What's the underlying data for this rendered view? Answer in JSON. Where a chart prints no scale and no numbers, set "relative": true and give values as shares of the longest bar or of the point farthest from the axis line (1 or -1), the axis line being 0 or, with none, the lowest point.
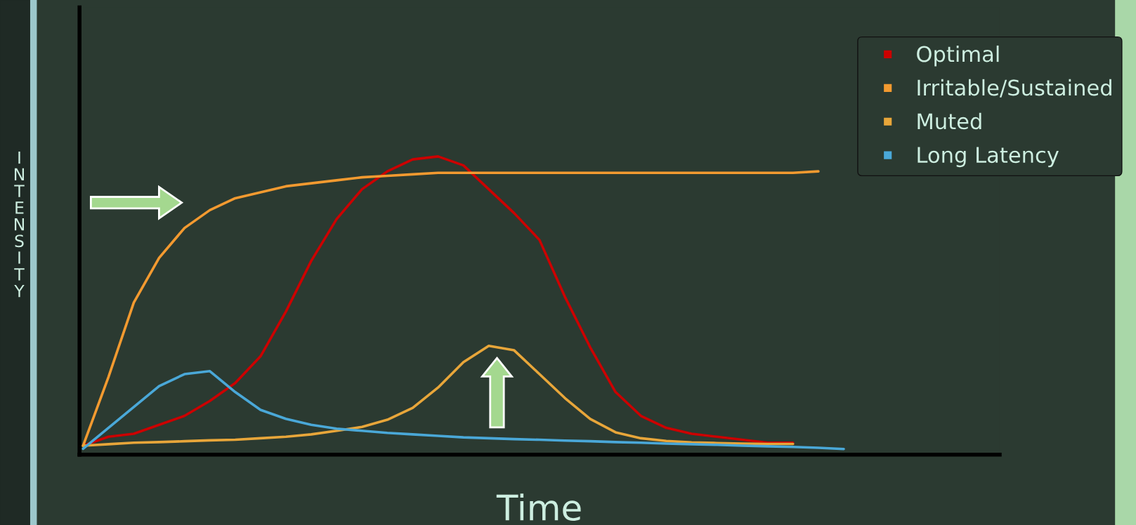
{
  "chart_data": {
    "type": "line",
    "relative": true,
    "xlabel": "Time",
    "ylabel": "INTENSITY",
    "legend": "top right",
    "marker": "none",
    "line_style": "solid",
    "categories": [
      null,
      null,
      null,
      null,
      null,
      null,
      null,
      null,
      null,
      null,
      null,
      null,
      null,
      null,
      null,
      null,
      null,
      null,
      null,
      null,
      null,
      null,
      null,
      null,
      null,
      null,
      null,
      null,
      null,
      null,
      null
    ],
    "series": [
      {
        "name": "Optimal",
        "color": "#cc0000",
        "values": [
          0.03,
          0.06,
          0.07,
          0.1,
          0.13,
          0.18,
          0.24,
          0.33,
          0.48,
          0.65,
          0.79,
          0.89,
          0.95,
          0.99,
          1.0,
          0.97,
          0.89,
          0.81,
          0.72,
          0.53,
          0.36,
          0.21,
          0.13,
          0.09,
          0.07,
          0.06,
          0.05,
          0.04,
          0.04,
          null,
          null
        ]
      },
      {
        "name": "Irritable/Sustained",
        "color": "#f39a30",
        "values": [
          0.03,
          0.26,
          0.51,
          0.66,
          0.76,
          0.82,
          0.86,
          0.88,
          0.9,
          0.91,
          0.92,
          0.93,
          0.935,
          0.94,
          0.945,
          0.945,
          0.945,
          0.945,
          0.945,
          0.945,
          0.945,
          0.945,
          0.945,
          0.945,
          0.945,
          0.945,
          0.945,
          0.945,
          0.945,
          0.95,
          null
        ]
      },
      {
        "name": "Muted",
        "color": "#e8a63a",
        "values": [
          0.03,
          0.035,
          0.04,
          0.042,
          0.045,
          0.048,
          0.05,
          0.055,
          0.06,
          0.068,
          0.08,
          0.093,
          0.117,
          0.157,
          0.225,
          0.31,
          0.365,
          0.35,
          0.27,
          0.19,
          0.12,
          0.075,
          0.055,
          0.046,
          0.041,
          0.039,
          0.037,
          0.036,
          0.036,
          null,
          null
        ]
      },
      {
        "name": "Long Latency",
        "color": "#4aa8d8",
        "values": [
          0.02,
          0.09,
          0.16,
          0.23,
          0.27,
          0.28,
          0.21,
          0.15,
          0.12,
          0.1,
          0.087,
          0.08,
          0.073,
          0.068,
          0.063,
          0.058,
          0.055,
          0.052,
          0.05,
          0.047,
          0.045,
          0.042,
          0.04,
          0.037,
          0.035,
          0.033,
          0.03,
          0.028,
          0.026,
          0.023,
          0.019
        ]
      }
    ]
  }
}
